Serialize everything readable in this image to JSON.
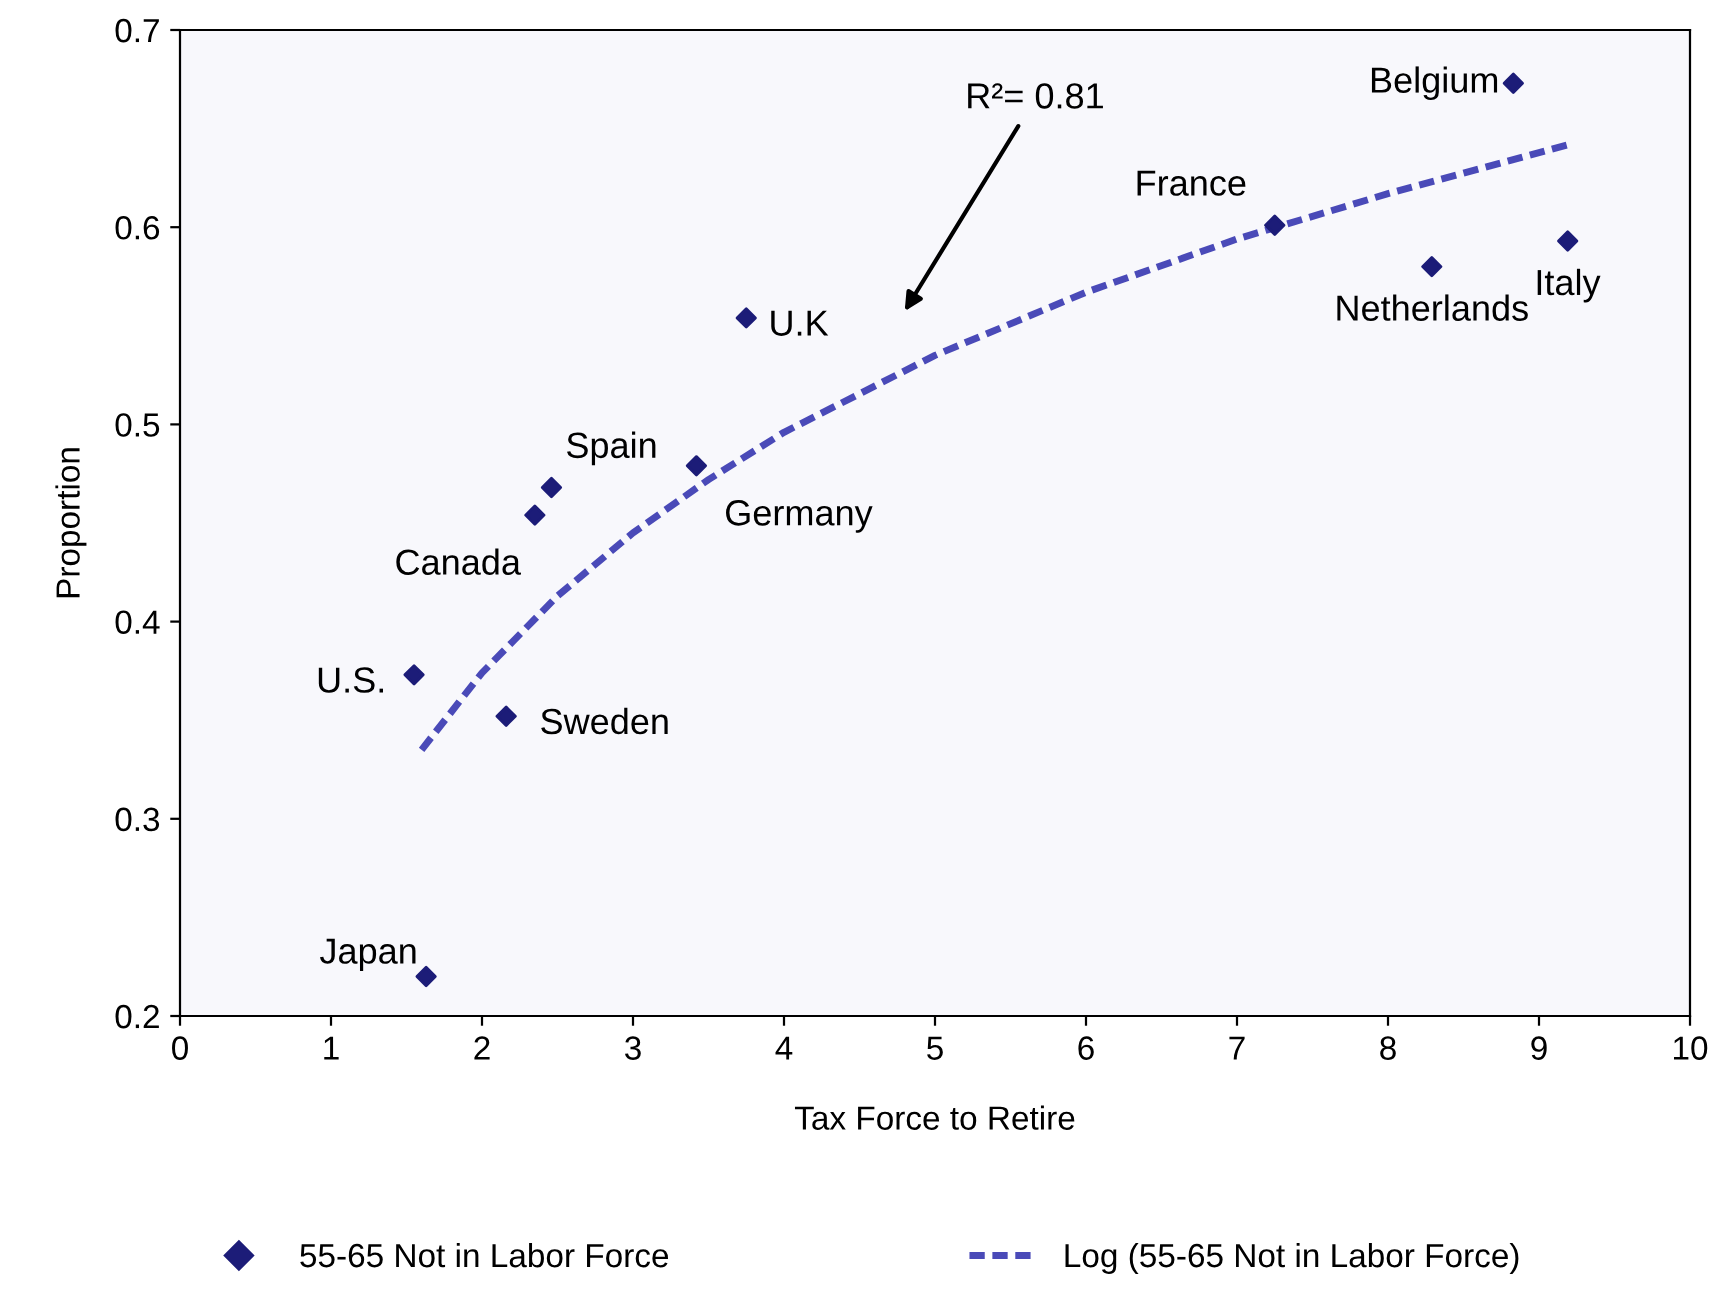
{
  "chart_data": {
    "type": "scatter",
    "xlabel": "Tax Force to Retire",
    "ylabel": "Proportion",
    "xlim": [
      0,
      10
    ],
    "ylim": [
      0.2,
      0.7
    ],
    "xticks": [
      0,
      1,
      2,
      3,
      4,
      5,
      6,
      7,
      8,
      9,
      10
    ],
    "yticks": [
      0.2,
      0.3,
      0.4,
      0.5,
      0.6,
      0.7
    ],
    "grid": false,
    "legend": "bottom",
    "marker": "diamond",
    "series": [
      {
        "name": "55-65 Not in Labor Force",
        "color": "#1c1c78",
        "x": [
          1.63,
          1.55,
          2.16,
          2.35,
          2.46,
          3.42,
          3.75,
          7.25,
          8.29,
          9.19,
          8.83
        ],
        "values": [
          0.22,
          0.373,
          0.352,
          0.454,
          0.468,
          0.479,
          0.554,
          0.601,
          0.58,
          0.593,
          0.673
        ]
      },
      {
        "name": "Log (55-65 Not in Labor Force)",
        "type": "line",
        "color": "#4a4ab8",
        "line_style": "dashed",
        "marker": "none",
        "x": [
          1.6,
          2,
          2.5,
          3,
          3.5,
          4,
          5,
          6,
          7,
          8,
          9.2
        ],
        "values": [
          0.335,
          0.374,
          0.413,
          0.445,
          0.472,
          0.496,
          0.535,
          0.567,
          0.594,
          0.617,
          0.642
        ]
      }
    ],
    "annotations": [
      {
        "text": "Japan",
        "x": 1.63,
        "y": 0.22
      },
      {
        "text": "U.S.",
        "x": 1.55,
        "y": 0.373
      },
      {
        "text": "Sweden",
        "x": 2.16,
        "y": 0.352
      },
      {
        "text": "Canada",
        "x": 2.35,
        "y": 0.454
      },
      {
        "text": "Spain",
        "x": 2.46,
        "y": 0.468
      },
      {
        "text": "Germany",
        "x": 3.42,
        "y": 0.479
      },
      {
        "text": "U.K",
        "x": 3.75,
        "y": 0.554
      },
      {
        "text": "France",
        "x": 7.25,
        "y": 0.601
      },
      {
        "text": "Netherlands",
        "x": 8.29,
        "y": 0.58
      },
      {
        "text": "Italy",
        "x": 9.19,
        "y": 0.593
      },
      {
        "text": "Belgium",
        "x": 8.83,
        "y": 0.673
      },
      "R²= 0.81"
    ]
  }
}
